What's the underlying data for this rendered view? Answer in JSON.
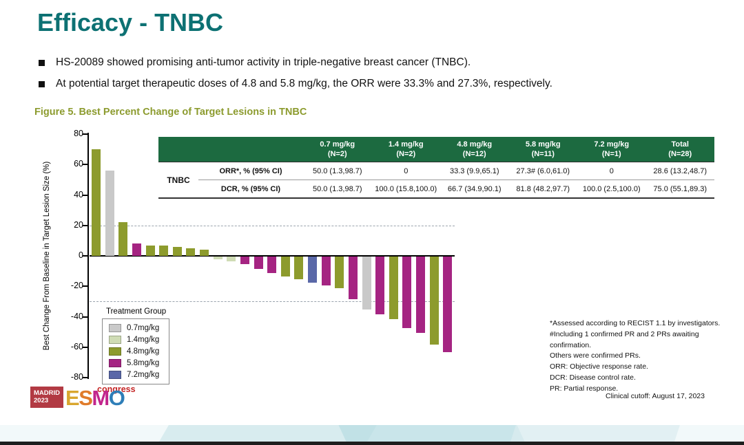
{
  "slide": {
    "title": "Efficacy - TNBC",
    "bullets": [
      "HS-20089 showed promising anti-tumor activity in triple-negative breast cancer (TNBC).",
      "At potential target therapeutic doses of 4.8 and 5.8 mg/kg, the ORR were 33.3% and 27.3%, respectively."
    ],
    "figure_caption": "Figure 5. Best Percent Change of Target Lesions in TNBC",
    "footnotes": [
      "*Assessed according to RECIST 1.1 by investigators.",
      "#Including 1 confirmed PR and 2 PRs awaiting confirmation.",
      "Others were confirmed PRs.",
      "ORR: Objective response rate.",
      "DCR: Disease control rate.",
      "PR: Partial response."
    ],
    "clinical_cutoff": "Clinical cutoff: August 17, 2023"
  },
  "logo": {
    "city": "MADRID",
    "year": "2023",
    "esmo_letters": [
      "E",
      "S",
      "M",
      "O"
    ],
    "esmo_letter_colors": [
      "#d9a62e",
      "#e07b2a",
      "#c2258c",
      "#2e7eb8"
    ],
    "congress": "congress"
  },
  "table": {
    "group_label": "TNBC",
    "columns": [
      {
        "dose": "0.7 mg/kg",
        "n": "(N=2)"
      },
      {
        "dose": "1.4 mg/kg",
        "n": "(N=2)"
      },
      {
        "dose": "4.8 mg/kg",
        "n": "(N=12)"
      },
      {
        "dose": "5.8 mg/kg",
        "n": "(N=11)"
      },
      {
        "dose": "7.2 mg/kg",
        "n": "(N=1)"
      },
      {
        "dose": "Total",
        "n": "(N=28)"
      }
    ],
    "rows": [
      {
        "label": "ORR*, % (95% CI)",
        "values": [
          "50.0 (1.3,98.7)",
          "0",
          "33.3 (9.9,65.1)",
          "27.3# (6.0,61.0)",
          "0",
          "28.6 (13.2,48.7)"
        ]
      },
      {
        "label": "DCR, % (95% CI)",
        "values": [
          "50.0 (1.3,98.7)",
          "100.0 (15.8,100.0)",
          "66.7 (34.9,90.1)",
          "81.8 (48.2,97.7)",
          "100.0 (2.5,100.0)",
          "75.0 (55.1,89.3)"
        ]
      }
    ],
    "header_bg": "#1c6a40"
  },
  "chart_data": {
    "type": "bar",
    "subtype": "waterfall",
    "title": "Best Percent Change of Target Lesions in TNBC",
    "ylabel": "Best Change From Baseline in Target Lesion Size (%)",
    "ylim": [
      -80,
      80
    ],
    "yticks": [
      80,
      60,
      40,
      20,
      0,
      -20,
      -40,
      -60,
      -80
    ],
    "reference_lines": [
      20,
      -30
    ],
    "grid": false,
    "legend_title": "Treatment Group",
    "legend_position": "lower-left",
    "groups": [
      {
        "name": "0.7mg/kg",
        "color": "#c9c9c9"
      },
      {
        "name": "1.4mg/kg",
        "color": "#cfdcb5"
      },
      {
        "name": "4.8mg/kg",
        "color": "#8d9b2d"
      },
      {
        "name": "5.8mg/kg",
        "color": "#a52482"
      },
      {
        "name": "7.2mg/kg",
        "color": "#5a68a8"
      }
    ],
    "bars": [
      {
        "value": 70,
        "group": "4.8mg/kg"
      },
      {
        "value": 56,
        "group": "0.7mg/kg"
      },
      {
        "value": 22,
        "group": "4.8mg/kg"
      },
      {
        "value": 8,
        "group": "5.8mg/kg"
      },
      {
        "value": 7,
        "group": "4.8mg/kg"
      },
      {
        "value": 7,
        "group": "4.8mg/kg"
      },
      {
        "value": 6,
        "group": "4.8mg/kg"
      },
      {
        "value": 5,
        "group": "4.8mg/kg"
      },
      {
        "value": 4,
        "group": "4.8mg/kg"
      },
      {
        "value": -2,
        "group": "1.4mg/kg"
      },
      {
        "value": -3,
        "group": "1.4mg/kg"
      },
      {
        "value": -5,
        "group": "5.8mg/kg"
      },
      {
        "value": -8,
        "group": "5.8mg/kg"
      },
      {
        "value": -11,
        "group": "5.8mg/kg"
      },
      {
        "value": -13,
        "group": "4.8mg/kg"
      },
      {
        "value": -15,
        "group": "4.8mg/kg"
      },
      {
        "value": -17,
        "group": "7.2mg/kg"
      },
      {
        "value": -19,
        "group": "5.8mg/kg"
      },
      {
        "value": -21,
        "group": "4.8mg/kg"
      },
      {
        "value": -28,
        "group": "5.8mg/kg"
      },
      {
        "value": -35,
        "group": "0.7mg/kg"
      },
      {
        "value": -38,
        "group": "5.8mg/kg"
      },
      {
        "value": -41,
        "group": "4.8mg/kg"
      },
      {
        "value": -47,
        "group": "5.8mg/kg"
      },
      {
        "value": -50,
        "group": "5.8mg/kg"
      },
      {
        "value": -58,
        "group": "4.8mg/kg"
      },
      {
        "value": -63,
        "group": "5.8mg/kg"
      }
    ]
  },
  "colors": {
    "title": "#0d7173",
    "figure_caption": "#8c9b2e",
    "table_header": "#1c6a40",
    "logo_red": "#b23a43",
    "congress_red": "#c42525"
  }
}
